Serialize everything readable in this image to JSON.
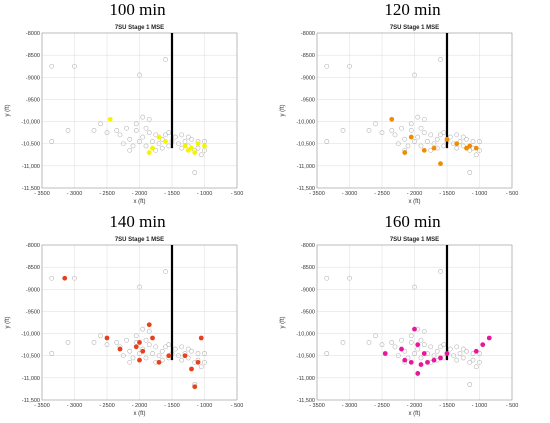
{
  "chart_data": [
    {
      "type": "scatter",
      "panel_title": "100 min",
      "title": "7SU Stage 1 MSE",
      "xlabel": "x (ft)",
      "ylabel": "y (ft)",
      "xlim": [
        -3500,
        -500
      ],
      "ylim": [
        -11500,
        -8000
      ],
      "xticks": [
        "- 3500",
        "- 3000",
        "- 2500",
        "- 2000",
        "- 1500",
        "- 1000",
        "- 500"
      ],
      "yticks": [
        "-8000",
        "-8500",
        "-9000",
        "-9500",
        "-10,000",
        "-10,500",
        "-11,000",
        "-11,500"
      ],
      "grid": true,
      "well": {
        "x": -1500,
        "y_top": -8000,
        "y_bottom": -10600,
        "color": "#000000"
      },
      "highlight_color": "#f5f500",
      "highlight_points": [
        [
          -2450,
          -9950
        ],
        [
          -1800,
          -10600
        ],
        [
          -1700,
          -10350
        ],
        [
          -1600,
          -10450
        ],
        [
          -1850,
          -10700
        ],
        [
          -1300,
          -10550
        ],
        [
          -1200,
          -10600
        ],
        [
          -1100,
          -10500
        ],
        [
          -1150,
          -10700
        ],
        [
          -1000,
          -10550
        ],
        [
          -1250,
          -10650
        ]
      ]
    },
    {
      "type": "scatter",
      "panel_title": "120 min",
      "title": "7SU Stage 1 MSE",
      "xlabel": "x (ft)",
      "ylabel": "y (ft)",
      "xlim": [
        -3500,
        -500
      ],
      "ylim": [
        -11500,
        -8000
      ],
      "xticks": [
        "- 3500",
        "- 3000",
        "- 2500",
        "- 2000",
        "- 1500",
        "- 1000",
        "- 500"
      ],
      "yticks": [
        "-8000",
        "-8500",
        "-9000",
        "-9500",
        "-10,000",
        "-10,500",
        "-11,000",
        "-11,500"
      ],
      "grid": true,
      "well": {
        "x": -1500,
        "y_top": -8000,
        "y_bottom": -10600,
        "color": "#000000"
      },
      "highlight_color": "#f08c00",
      "highlight_points": [
        [
          -2350,
          -9950
        ],
        [
          -2050,
          -10350
        ],
        [
          -2150,
          -10700
        ],
        [
          -1850,
          -10650
        ],
        [
          -1700,
          -10600
        ],
        [
          -1600,
          -10950
        ],
        [
          -1350,
          -10500
        ],
        [
          -1200,
          -10600
        ],
        [
          -1150,
          -10550
        ],
        [
          -1050,
          -10600
        ],
        [
          -1500,
          -10400
        ]
      ]
    },
    {
      "type": "scatter",
      "panel_title": "140 min",
      "title": "7SU Stage 1 MSE",
      "xlabel": "x (ft)",
      "ylabel": "y (ft)",
      "xlim": [
        -3500,
        -500
      ],
      "ylim": [
        -11500,
        -8000
      ],
      "xticks": [
        "- 3500",
        "- 3000",
        "- 2500",
        "- 2000",
        "- 1500",
        "- 1000",
        "- 500"
      ],
      "yticks": [
        "-8000",
        "-8500",
        "-9000",
        "-9500",
        "-10,000",
        "-10,500",
        "-11,000",
        "-11,500"
      ],
      "grid": true,
      "well": {
        "x": -1500,
        "y_top": -8000,
        "y_bottom": -10600,
        "color": "#000000"
      },
      "highlight_color": "#e8401c",
      "highlight_points": [
        [
          -3150,
          -8750
        ],
        [
          -2500,
          -10100
        ],
        [
          -2300,
          -10350
        ],
        [
          -2050,
          -10300
        ],
        [
          -2000,
          -10200
        ],
        [
          -1950,
          -10400
        ],
        [
          -1850,
          -9800
        ],
        [
          -1800,
          -10100
        ],
        [
          -2000,
          -10600
        ],
        [
          -1700,
          -10650
        ],
        [
          -1550,
          -10500
        ],
        [
          -1300,
          -10500
        ],
        [
          -1200,
          -10800
        ],
        [
          -1100,
          -10650
        ],
        [
          -1050,
          -10100
        ],
        [
          -1150,
          -11200
        ]
      ]
    },
    {
      "type": "scatter",
      "panel_title": "160 min",
      "title": "7SU Stage 1 MSE",
      "xlabel": "x (ft)",
      "ylabel": "y (ft)",
      "xlim": [
        -3500,
        -500
      ],
      "ylim": [
        -11500,
        -8000
      ],
      "xticks": [
        "- 3500",
        "- 3000",
        "- 2500",
        "- 2000",
        "- 1500",
        "- 1000",
        "- 500"
      ],
      "yticks": [
        "-8000",
        "-8500",
        "-9000",
        "-9500",
        "-10,000",
        "-10,500",
        "-11,000",
        "-11,500"
      ],
      "grid": true,
      "well": {
        "x": -1500,
        "y_top": -8000,
        "y_bottom": -10600,
        "color": "#000000"
      },
      "highlight_color": "#e8169a",
      "highlight_points": [
        [
          -2450,
          -10450
        ],
        [
          -2200,
          -10350
        ],
        [
          -2150,
          -10600
        ],
        [
          -2000,
          -9900
        ],
        [
          -1950,
          -10250
        ],
        [
          -1850,
          -10450
        ],
        [
          -2050,
          -10650
        ],
        [
          -1900,
          -10700
        ],
        [
          -1800,
          -10650
        ],
        [
          -1950,
          -10900
        ],
        [
          -1700,
          -10600
        ],
        [
          -1600,
          -10550
        ],
        [
          -1500,
          -10450
        ],
        [
          -1050,
          -10400
        ],
        [
          -950,
          -10250
        ],
        [
          -850,
          -10100
        ]
      ]
    }
  ],
  "background_points": [
    [
      -3350,
      -8750
    ],
    [
      -3000,
      -8750
    ],
    [
      -3100,
      -10200
    ],
    [
      -3350,
      -10450
    ],
    [
      -2600,
      -10050
    ],
    [
      -2500,
      -10250
    ],
    [
      -2350,
      -10200
    ],
    [
      -2250,
      -10500
    ],
    [
      -2200,
      -10150
    ],
    [
      -2150,
      -10400
    ],
    [
      -2100,
      -10550
    ],
    [
      -2050,
      -10050
    ],
    [
      -2000,
      -10450
    ],
    [
      -1950,
      -10350
    ],
    [
      -1900,
      -10550
    ],
    [
      -1850,
      -10250
    ],
    [
      -1800,
      -10450
    ],
    [
      -1750,
      -10300
    ],
    [
      -1700,
      -10500
    ],
    [
      -1650,
      -10400
    ],
    [
      -1600,
      -10300
    ],
    [
      -1550,
      -10550
    ],
    [
      -1500,
      -10450
    ],
    [
      -1450,
      -10350
    ],
    [
      -1400,
      -10500
    ],
    [
      -1350,
      -10600
    ],
    [
      -1300,
      -10450
    ],
    [
      -1250,
      -10550
    ],
    [
      -1200,
      -10400
    ],
    [
      -1150,
      -10650
    ],
    [
      -1100,
      -10600
    ],
    [
      -1050,
      -10750
    ],
    [
      -1000,
      -10450
    ],
    [
      -1150,
      -11150
    ],
    [
      -2000,
      -8950
    ],
    [
      -1850,
      -9950
    ],
    [
      -1950,
      -9900
    ],
    [
      -2150,
      -10650
    ],
    [
      -1750,
      -10650
    ],
    [
      -1650,
      -10600
    ],
    [
      -2300,
      -10300
    ],
    [
      -2050,
      -10200
    ],
    [
      -1600,
      -8600
    ],
    [
      -2700,
      -10200
    ],
    [
      -1550,
      -10250
    ],
    [
      -1250,
      -10350
    ],
    [
      -1350,
      -10300
    ],
    [
      -1100,
      -10450
    ],
    [
      -1000,
      -10650
    ],
    [
      -1900,
      -10150
    ]
  ]
}
